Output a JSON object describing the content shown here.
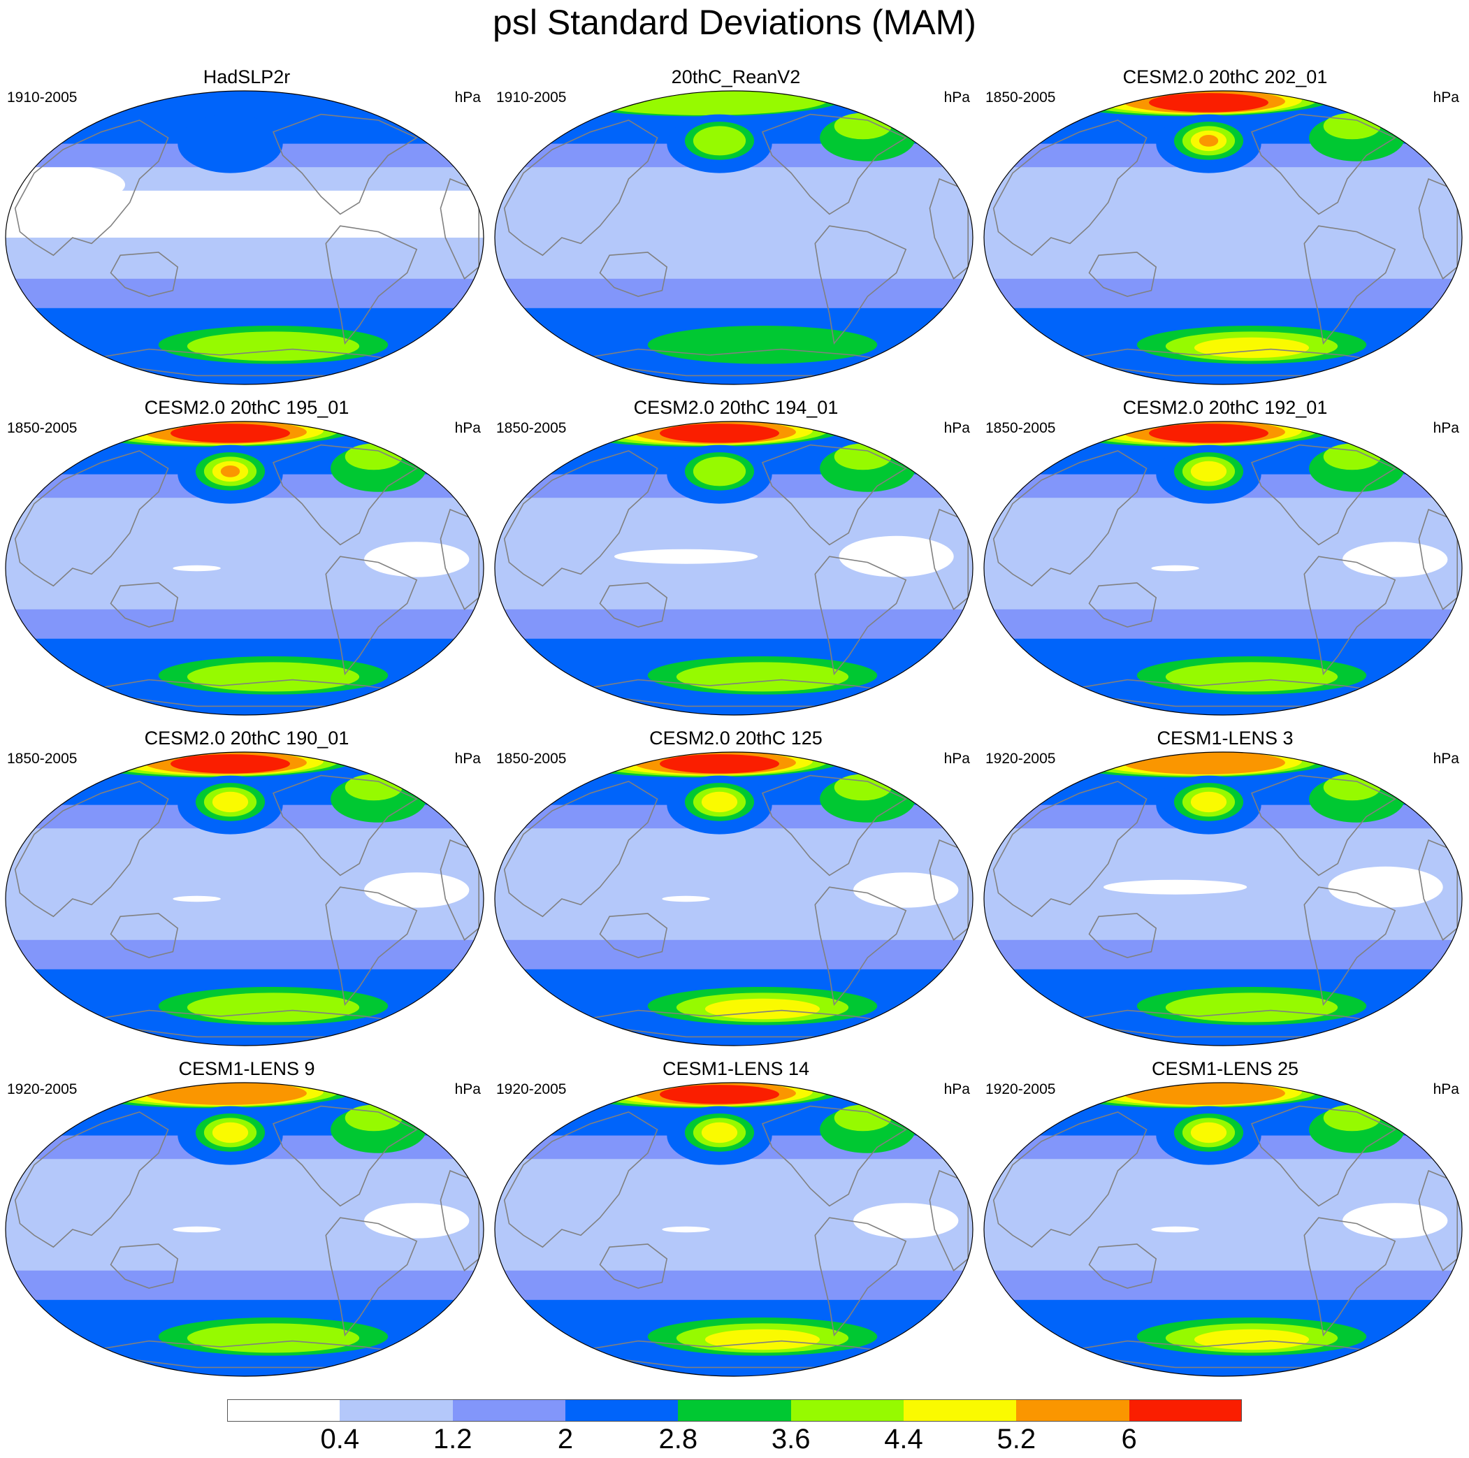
{
  "title": "psl Standard Deviations (MAM)",
  "colorbar": {
    "colors": [
      "#ffffff",
      "#b4c8fa",
      "#8296fa",
      "#0064fa",
      "#00c832",
      "#96fa00",
      "#fafa00",
      "#fa9600",
      "#fa1e00"
    ],
    "labels": [
      "0.4",
      "1.2",
      "2",
      "2.8",
      "3.6",
      "4.4",
      "5.2",
      "6"
    ]
  },
  "colors": {
    "coastline": "#808080",
    "outline": "#000000"
  },
  "panels": [
    {
      "title": "HadSLP2r",
      "period": "1910-2005",
      "unit": "hPa",
      "arctic_max": 2,
      "npac_max": 3,
      "sh_max": 5,
      "tropic_white": "wide"
    },
    {
      "title": "20thC_ReanV2",
      "period": "1910-2005",
      "unit": "hPa",
      "arctic_max": 5,
      "npac_max": 5,
      "sh_max": 4,
      "tropic_white": "none"
    },
    {
      "title": "CESM2.0 20thC 202_01",
      "period": "1850-2005",
      "unit": "hPa",
      "arctic_max": 8,
      "npac_max": 7,
      "sh_max": 6,
      "tropic_white": "none"
    },
    {
      "title": "CESM2.0 20thC 195_01",
      "period": "1850-2005",
      "unit": "hPa",
      "arctic_max": 8,
      "npac_max": 7,
      "sh_max": 5,
      "tropic_white": "small"
    },
    {
      "title": "CESM2.0 20thC 194_01",
      "period": "1850-2005",
      "unit": "hPa",
      "arctic_max": 8,
      "npac_max": 5,
      "sh_max": 5,
      "tropic_white": "medium"
    },
    {
      "title": "CESM2.0 20thC 192_01",
      "period": "1850-2005",
      "unit": "hPa",
      "arctic_max": 8,
      "npac_max": 6,
      "sh_max": 5,
      "tropic_white": "small"
    },
    {
      "title": "CESM2.0 20thC 190_01",
      "period": "1850-2005",
      "unit": "hPa",
      "arctic_max": 8,
      "npac_max": 6,
      "sh_max": 5,
      "tropic_white": "small"
    },
    {
      "title": "CESM2.0 20thC 125",
      "period": "1850-2005",
      "unit": "hPa",
      "arctic_max": 8,
      "npac_max": 6,
      "sh_max": 6,
      "tropic_white": "small"
    },
    {
      "title": "CESM1-LENS 3",
      "period": "1920-2005",
      "unit": "hPa",
      "arctic_max": 7,
      "npac_max": 6,
      "sh_max": 5,
      "tropic_white": "medium"
    },
    {
      "title": "CESM1-LENS 9",
      "period": "1920-2005",
      "unit": "hPa",
      "arctic_max": 7,
      "npac_max": 6,
      "sh_max": 5,
      "tropic_white": "small"
    },
    {
      "title": "CESM1-LENS 14",
      "period": "1920-2005",
      "unit": "hPa",
      "arctic_max": 8,
      "npac_max": 6,
      "sh_max": 6,
      "tropic_white": "small"
    },
    {
      "title": "CESM1-LENS 25",
      "period": "1920-2005",
      "unit": "hPa",
      "arctic_max": 7,
      "npac_max": 6,
      "sh_max": 6,
      "tropic_white": "small"
    }
  ]
}
